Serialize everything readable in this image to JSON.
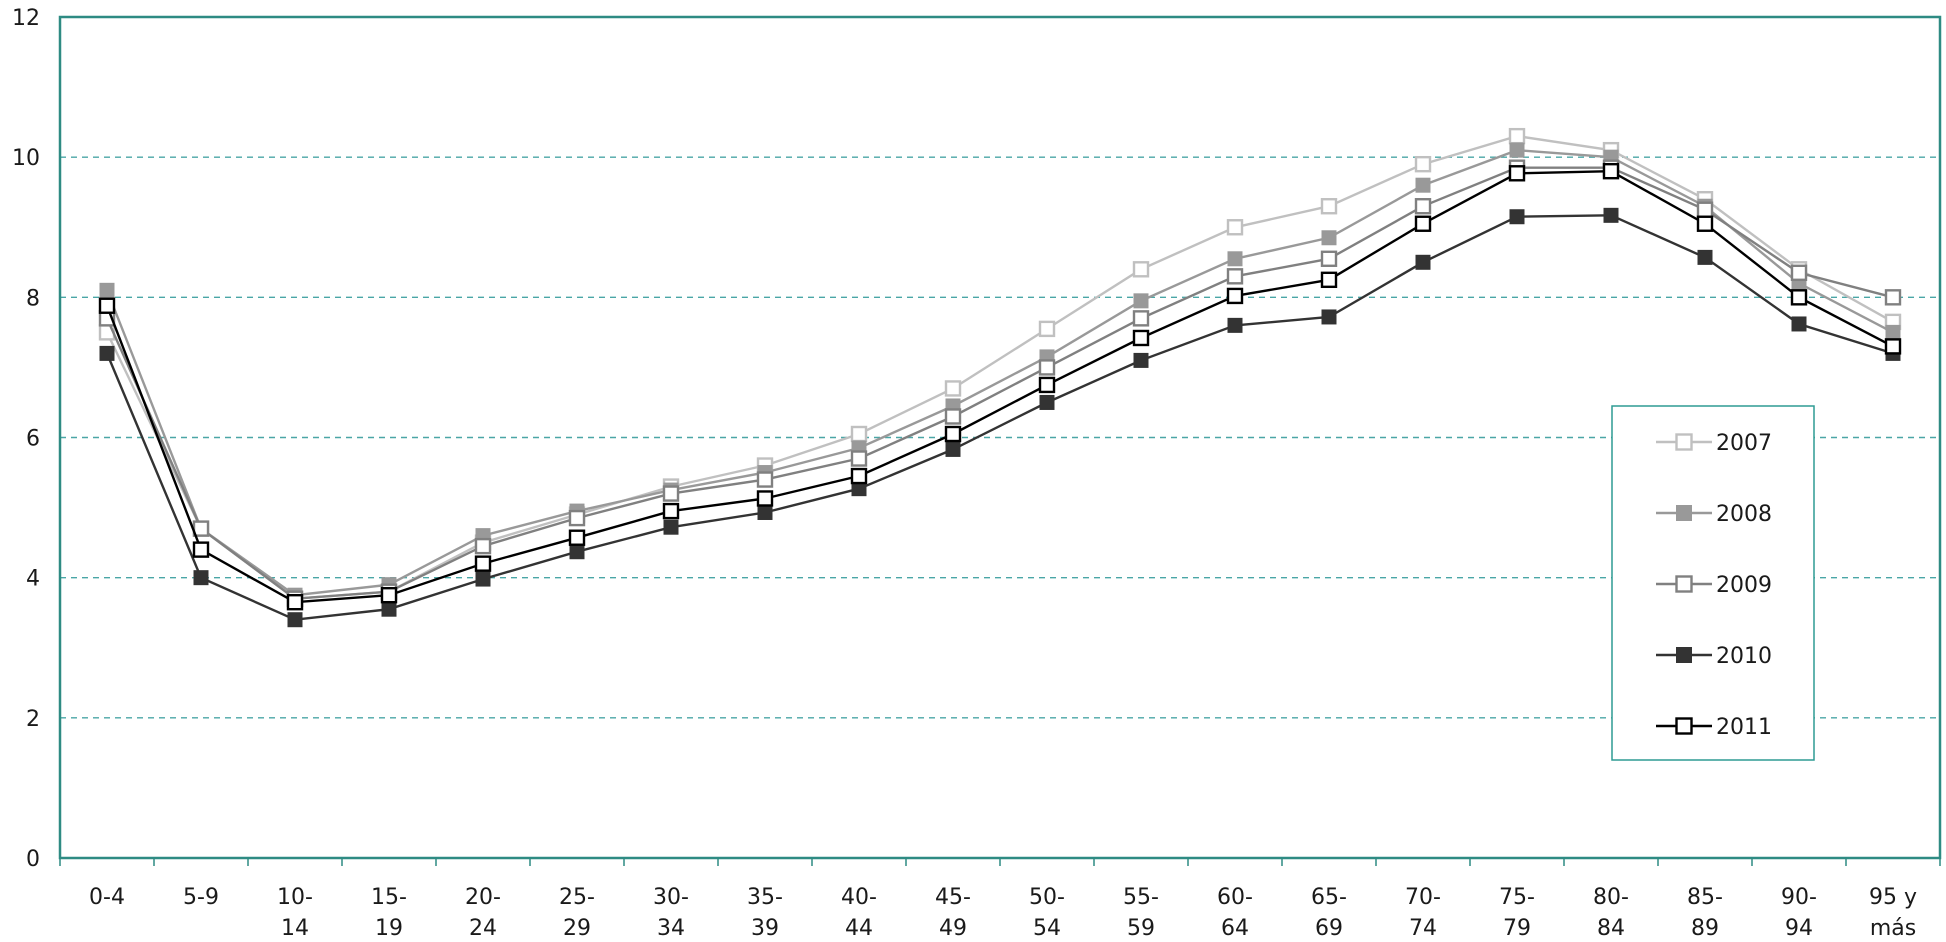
{
  "chart_data": {
    "type": "line",
    "title": "",
    "xlabel": "",
    "ylabel": "",
    "categories": [
      [
        "0-4"
      ],
      [
        "5-9"
      ],
      [
        "10-",
        "14"
      ],
      [
        "15-",
        "19"
      ],
      [
        "20-",
        "24"
      ],
      [
        "25-",
        "29"
      ],
      [
        "30-",
        "34"
      ],
      [
        "35-",
        "39"
      ],
      [
        "40-",
        "44"
      ],
      [
        "45-",
        "49"
      ],
      [
        "50-",
        "54"
      ],
      [
        "55-",
        "59"
      ],
      [
        "60-",
        "64"
      ],
      [
        "65-",
        "69"
      ],
      [
        "70-",
        "74"
      ],
      [
        "75-",
        "79"
      ],
      [
        "80-",
        "84"
      ],
      [
        "85-",
        "89"
      ],
      [
        "90-",
        "94"
      ],
      [
        "95 y",
        "más"
      ]
    ],
    "ylim": [
      0,
      12
    ],
    "yticks": [
      0,
      2,
      4,
      6,
      8,
      10,
      12
    ],
    "grid": "horizontal dashed",
    "legend_position": "right",
    "series": [
      {
        "name": "2007",
        "color": "#c0c0c0",
        "marker": "hollow-square",
        "values": [
          7.5,
          4.7,
          3.7,
          3.8,
          4.5,
          4.9,
          5.3,
          5.6,
          6.05,
          6.7,
          7.55,
          8.4,
          9.0,
          9.3,
          9.9,
          10.3,
          10.1,
          9.4,
          8.4,
          7.65
        ]
      },
      {
        "name": "2008",
        "color": "#999999",
        "marker": "filled-square",
        "values": [
          8.1,
          4.7,
          3.75,
          3.9,
          4.6,
          4.95,
          5.25,
          5.5,
          5.85,
          6.45,
          7.15,
          7.95,
          8.55,
          8.85,
          9.6,
          10.1,
          10.0,
          9.3,
          8.2,
          7.5
        ]
      },
      {
        "name": "2009",
        "color": "#808080",
        "marker": "hollow-square",
        "values": [
          7.7,
          4.7,
          3.7,
          3.8,
          4.45,
          4.85,
          5.2,
          5.4,
          5.7,
          6.3,
          7.0,
          7.7,
          8.3,
          8.55,
          9.3,
          9.85,
          9.85,
          9.25,
          8.35,
          8.0
        ]
      },
      {
        "name": "2010",
        "color": "#333333",
        "marker": "filled-square",
        "values": [
          7.2,
          4.0,
          3.4,
          3.55,
          3.98,
          4.37,
          4.72,
          4.93,
          5.27,
          5.83,
          6.5,
          7.1,
          7.6,
          7.72,
          8.5,
          9.15,
          9.17,
          8.57,
          7.62,
          7.2
        ]
      },
      {
        "name": "2011",
        "color": "#000000",
        "marker": "hollow-square",
        "values": [
          7.88,
          4.4,
          3.65,
          3.75,
          4.2,
          4.57,
          4.95,
          5.13,
          5.45,
          6.05,
          6.75,
          7.42,
          8.02,
          8.25,
          9.05,
          9.77,
          9.8,
          9.05,
          8.0,
          7.3
        ]
      }
    ]
  }
}
